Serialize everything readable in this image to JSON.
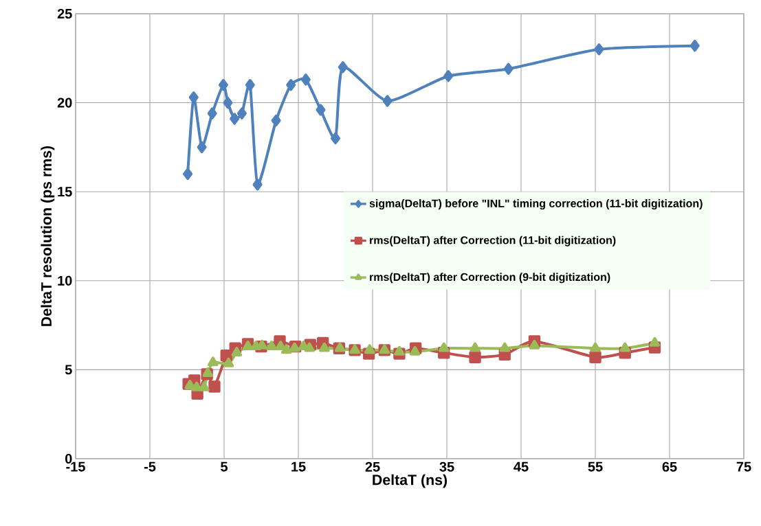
{
  "chart_data": {
    "type": "line",
    "xlabel": "DeltaT (ns)",
    "ylabel": "DeltaT resolution (ps rms)",
    "xlim": [
      -15,
      75
    ],
    "xticks": [
      -15,
      -5,
      5,
      15,
      25,
      35,
      45,
      55,
      65,
      75
    ],
    "ylim": [
      0,
      25
    ],
    "yticks": [
      0,
      5,
      10,
      15,
      20,
      25
    ],
    "grid": true,
    "legend": "right",
    "line_style": "solid",
    "series": [
      {
        "name": "sigma(DeltaT) before \"INL\" timing correction (11-bit digitization)",
        "color": "#4f81bd",
        "marker": "diamond",
        "x": [
          0.1,
          0.9,
          2.0,
          3.4,
          4.9,
          5.5,
          6.4,
          7.4,
          8.5,
          9.5,
          12.0,
          14.0,
          16.0,
          18.0,
          20.0,
          21.0,
          27.0,
          35.2,
          43.3,
          55.5,
          68.4
        ],
        "values": [
          16.0,
          20.3,
          17.5,
          19.4,
          21.0,
          20.0,
          19.1,
          19.4,
          21.0,
          15.4,
          19.0,
          21.0,
          21.3,
          19.6,
          18.0,
          22.0,
          20.1,
          21.5,
          21.9,
          23.0,
          23.2
        ]
      },
      {
        "name": "rms(DeltaT) after Correction (11-bit digitization)",
        "color": "#c0504d",
        "marker": "square",
        "x": [
          0.2,
          1.0,
          1.4,
          2.7,
          3.7,
          5.3,
          6.5,
          8.2,
          10.0,
          12.5,
          14.6,
          16.6,
          18.3,
          20.5,
          22.6,
          24.5,
          26.6,
          28.6,
          30.8,
          34.6,
          38.8,
          42.8,
          46.8,
          55.0,
          59.0,
          63.0
        ],
        "values": [
          4.2,
          4.4,
          3.65,
          4.75,
          4.05,
          5.8,
          6.2,
          6.45,
          6.3,
          6.6,
          6.3,
          6.4,
          6.5,
          6.2,
          6.1,
          5.9,
          6.1,
          5.9,
          6.2,
          5.95,
          5.7,
          5.85,
          6.6,
          5.7,
          5.95,
          6.25
        ]
      },
      {
        "name": "rms(DeltaT) after Correction (9-bit digitization)",
        "color": "#9bbb59",
        "marker": "triangle",
        "x": [
          0.4,
          1.3,
          2.3,
          2.8,
          3.5,
          5.6,
          6.7,
          8.2,
          9.3,
          10.1,
          11.4,
          12.6,
          13.4,
          14.5,
          15.7,
          16.5,
          18.5,
          20.6,
          22.6,
          24.6,
          26.6,
          28.6,
          30.7,
          34.6,
          38.8,
          42.8,
          46.8,
          55.0,
          59.0,
          63.0
        ],
        "values": [
          4.1,
          4.0,
          4.0,
          4.8,
          5.4,
          5.35,
          5.95,
          6.3,
          6.3,
          6.35,
          6.3,
          6.3,
          6.1,
          6.2,
          6.3,
          6.2,
          6.2,
          6.2,
          6.1,
          6.1,
          6.1,
          6.0,
          6.0,
          6.2,
          6.2,
          6.2,
          6.35,
          6.2,
          6.2,
          6.5
        ]
      }
    ]
  }
}
